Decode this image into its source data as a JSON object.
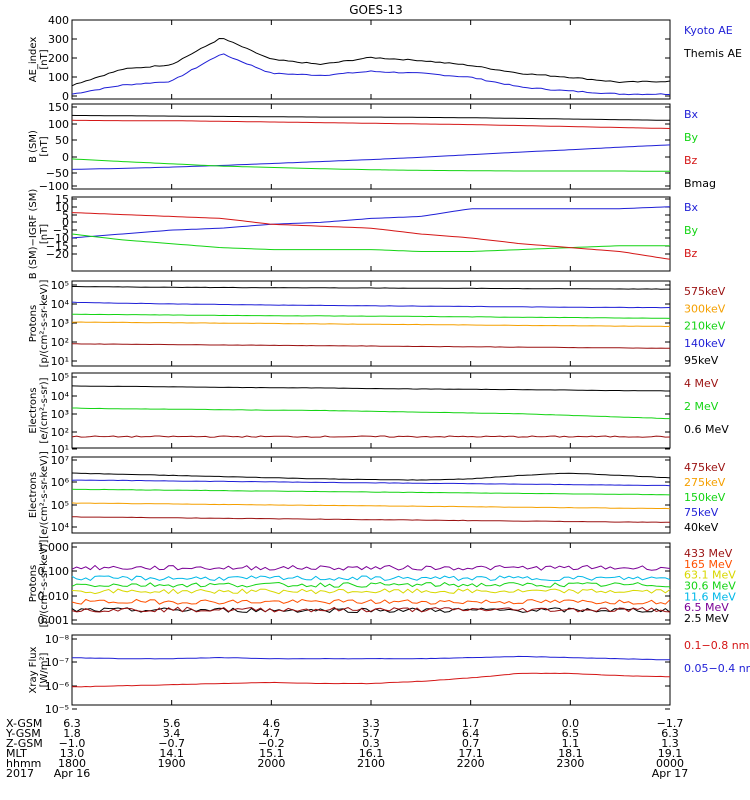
{
  "figure": {
    "title": "GOES-13"
  },
  "colors": {
    "black": "#000000",
    "blue": "#1f1fd6",
    "red": "#d41616",
    "green": "#14d414",
    "orange": "#f5a000",
    "darkred": "#9a1010",
    "cyan": "#00b8e8",
    "yellow": "#d8d800",
    "brightorange": "#ff5000",
    "purple": "#7a0096"
  },
  "panels": [
    {
      "ylabel": [
        "AE_index",
        "[nT]"
      ],
      "ticks": [
        "400",
        "300",
        "200",
        "100",
        "0"
      ],
      "legend": [
        {
          "text": "Kyoto AE",
          "color": "blue"
        },
        {
          "text": "Themis AE",
          "color": "black"
        }
      ]
    },
    {
      "ylabel": [
        "B (SM)",
        "[nT]"
      ],
      "ticks": [
        "150",
        "100",
        "50",
        "0",
        "−50",
        "−100"
      ],
      "legend": [
        {
          "text": "Bx",
          "color": "blue"
        },
        {
          "text": "By",
          "color": "green"
        },
        {
          "text": "Bz",
          "color": "red"
        },
        {
          "text": "Bmag",
          "color": "black"
        }
      ]
    },
    {
      "ylabel": [
        "B (SM)−IGRF (SM)",
        "[nT]"
      ],
      "ticks": [
        "15",
        "10",
        "5",
        "0",
        "−5",
        "−10",
        "−15",
        "−20"
      ],
      "legend": [
        {
          "text": "Bx",
          "color": "blue"
        },
        {
          "text": "By",
          "color": "green"
        },
        {
          "text": "Bz",
          "color": "red"
        }
      ]
    },
    {
      "ylabel": [
        "Protons",
        "[p/(cm²-s-sr-keV)]"
      ],
      "ticks": [
        "10⁵",
        "10⁴",
        "10³",
        "10²",
        "10¹"
      ],
      "legend": [
        {
          "text": "575keV",
          "color": "darkred"
        },
        {
          "text": "300keV",
          "color": "orange"
        },
        {
          "text": "210keV",
          "color": "green"
        },
        {
          "text": "140keV",
          "color": "blue"
        },
        {
          "text": "95keV",
          "color": "black"
        }
      ]
    },
    {
      "ylabel": [
        "Electrons",
        "[e/(cm²-s-sr)]"
      ],
      "ticks": [
        "10⁵",
        "10⁴",
        "10³",
        "10²",
        "10¹"
      ],
      "legend": [
        {
          "text": "4 MeV",
          "color": "darkred"
        },
        {
          "text": "2 MeV",
          "color": "green"
        },
        {
          "text": "0.6 MeV",
          "color": "black"
        }
      ]
    },
    {
      "ylabel": [
        "Electrons",
        "[e/(cm²-s-sr-keV)]"
      ],
      "ticks": [
        "10⁷",
        "10⁶",
        "10⁵",
        "10⁴"
      ],
      "legend": [
        {
          "text": "475keV",
          "color": "darkred"
        },
        {
          "text": "275keV",
          "color": "orange"
        },
        {
          "text": "150keV",
          "color": "green"
        },
        {
          "text": "75keV",
          "color": "blue"
        },
        {
          "text": "40keV",
          "color": "black"
        }
      ]
    },
    {
      "ylabel": [
        "Protons",
        "[p/(cm²-s-sr-keV)]"
      ],
      "ticks": [
        "1.000",
        "0.100",
        "0.010",
        "0.001"
      ],
      "legend": [
        {
          "text": "433 MeV",
          "color": "darkred"
        },
        {
          "text": "165 MeV",
          "color": "brightorange"
        },
        {
          "text": "63.1 MeV",
          "color": "yellow"
        },
        {
          "text": "30.6 MeV",
          "color": "green"
        },
        {
          "text": "11.6 MeV",
          "color": "cyan"
        },
        {
          "text": "6.5 MeV",
          "color": "purple"
        },
        {
          "text": "2.5 MeV",
          "color": "black"
        }
      ]
    },
    {
      "ylabel": [
        "Xray Flux",
        "[W/m²]"
      ],
      "ticks": [
        "10⁻⁸",
        "10⁻⁷",
        "10⁻⁶",
        "10⁻⁵"
      ],
      "legend": [
        {
          "text": "0.1−0.8 nm",
          "color": "red"
        },
        {
          "text": "0.05−0.4 nm",
          "color": "blue"
        }
      ]
    }
  ],
  "ephemeris": {
    "labels": [
      "X-GSM",
      "Y-GSM",
      "Z-GSM",
      "MLT",
      "hhmm",
      "2017"
    ],
    "columns": [
      [
        "6.3",
        "1.8",
        "−1.0",
        "13.0",
        "1800",
        "Apr 16"
      ],
      [
        "5.6",
        "3.4",
        "−0.7",
        "14.1",
        "1900",
        ""
      ],
      [
        "4.6",
        "4.7",
        "−0.2",
        "15.1",
        "2000",
        ""
      ],
      [
        "3.3",
        "5.7",
        "0.3",
        "16.1",
        "2100",
        ""
      ],
      [
        "1.7",
        "6.4",
        "0.7",
        "17.1",
        "2200",
        ""
      ],
      [
        "0.0",
        "6.5",
        "1.1",
        "18.1",
        "2300",
        ""
      ],
      [
        "−1.7",
        "6.3",
        "1.3",
        "19.1",
        "0000",
        "Apr 17"
      ]
    ]
  },
  "chart_data": {
    "type": "line",
    "title": "GOES-13",
    "x_hours": [
      18,
      18.5,
      19,
      19.5,
      20,
      20.5,
      21,
      21.5,
      22,
      22.5,
      23,
      23.5,
      24
    ],
    "panels": [
      {
        "ylim": [
          0,
          400
        ],
        "log": false,
        "series": [
          {
            "name": "Kyoto AE",
            "color": "blue",
            "values": [
              25,
              70,
              90,
              230,
              130,
              120,
              140,
              130,
              110,
              60,
              40,
              25,
              25
            ]
          },
          {
            "name": "Themis AE",
            "color": "black",
            "values": [
              70,
              150,
              175,
              310,
              200,
              175,
              210,
              195,
              170,
              130,
              110,
              85,
              90
            ]
          }
        ]
      },
      {
        "ylim": [
          -110,
          150
        ],
        "log": false,
        "series": [
          {
            "name": "Bx",
            "color": "blue",
            "values": [
              -50,
              -47,
              -43,
              -38,
              -32,
              -26,
              -20,
              -13,
              -5,
              3,
              10,
              18,
              25
            ]
          },
          {
            "name": "By",
            "color": "green",
            "values": [
              -18,
              -26,
              -33,
              -40,
              -44,
              -48,
              -51,
              -53,
              -54,
              -55,
              -55,
              -55,
              -56
            ]
          },
          {
            "name": "Bz",
            "color": "red",
            "values": [
              100,
              99,
              99,
              97,
              95,
              93,
              91,
              89,
              87,
              84,
              81,
              78,
              75
            ]
          },
          {
            "name": "Bmag",
            "color": "black",
            "values": [
              115,
              114,
              113,
              112,
              111,
              110,
              110,
              109,
              108,
              106,
              104,
              102,
              100
            ]
          }
        ]
      },
      {
        "ylim": [
          -22,
          16
        ],
        "log": false,
        "series": [
          {
            "name": "Bx",
            "color": "blue",
            "values": [
              -5,
              -3,
              -1,
              0,
              2,
              3,
              5,
              6,
              10,
              10,
              10,
              10,
              11
            ]
          },
          {
            "name": "By",
            "color": "green",
            "values": [
              -3,
              -6,
              -8,
              -10,
              -11,
              -11,
              -11,
              -12,
              -12,
              -11,
              -10,
              -9,
              -9
            ]
          },
          {
            "name": "Bz",
            "color": "red",
            "values": [
              8,
              7,
              6,
              5,
              2,
              1,
              0,
              -3,
              -5,
              -8,
              -10,
              -12,
              -16
            ]
          }
        ]
      },
      {
        "ylim": [
          0.6,
          5.2
        ],
        "log": true,
        "series": [
          {
            "name": "95keV",
            "color": "black",
            "values": [
              4.9,
              4.88,
              4.86,
              4.85,
              4.84,
              4.83,
              4.82,
              4.81,
              4.8,
              4.79,
              4.78,
              4.77,
              4.76
            ]
          },
          {
            "name": "140keV",
            "color": "blue",
            "values": [
              4.05,
              4.0,
              3.96,
              3.93,
              3.9,
              3.88,
              3.86,
              3.84,
              3.82,
              3.8,
              3.78,
              3.77,
              3.76
            ]
          },
          {
            "name": "210keV",
            "color": "green",
            "values": [
              3.4,
              3.38,
              3.36,
              3.34,
              3.32,
              3.31,
              3.3,
              3.28,
              3.26,
              3.24,
              3.22,
              3.2,
              3.18
            ]
          },
          {
            "name": "300keV",
            "color": "orange",
            "values": [
              2.98,
              2.96,
              2.94,
              2.92,
              2.9,
              2.88,
              2.86,
              2.84,
              2.82,
              2.8,
              2.78,
              2.76,
              2.74
            ]
          },
          {
            "name": "575keV",
            "color": "darkred",
            "values": [
              1.8,
              1.78,
              1.76,
              1.74,
              1.72,
              1.7,
              1.68,
              1.66,
              1.64,
              1.62,
              1.6,
              1.58,
              1.56
            ]
          }
        ]
      },
      {
        "ylim": [
          0.6,
          5.2
        ],
        "log": true,
        "series": [
          {
            "name": "0.6 MeV",
            "color": "black",
            "values": [
              4.4,
              4.38,
              4.35,
              4.32,
              4.3,
              4.28,
              4.25,
              4.22,
              4.2,
              4.18,
              4.15,
              4.12,
              4.1
            ]
          },
          {
            "name": "2 MeV",
            "color": "green",
            "values": [
              3.05,
              3.0,
              2.98,
              2.95,
              2.92,
              2.9,
              2.85,
              2.8,
              2.75,
              2.7,
              2.6,
              2.5,
              2.4
            ]
          },
          {
            "name": "4 MeV",
            "color": "darkred",
            "values": [
              1.3,
              1.3,
              1.3,
              1.3,
              1.3,
              1.3,
              1.3,
              1.3,
              1.3,
              1.3,
              1.3,
              1.3,
              1.3
            ]
          }
        ]
      },
      {
        "ylim": [
          3.8,
          7.1
        ],
        "log": true,
        "series": [
          {
            "name": "40keV",
            "color": "black",
            "values": [
              6.4,
              6.35,
              6.3,
              6.25,
              6.2,
              6.15,
              6.12,
              6.1,
              6.15,
              6.3,
              6.4,
              6.3,
              6.2
            ]
          },
          {
            "name": "75keV",
            "color": "blue",
            "values": [
              6.1,
              6.08,
              6.06,
              6.04,
              6.02,
              6.0,
              5.98,
              5.96,
              5.94,
              5.92,
              5.9,
              5.88,
              5.86
            ]
          },
          {
            "name": "150keV",
            "color": "green",
            "values": [
              5.7,
              5.68,
              5.66,
              5.64,
              5.62,
              5.6,
              5.58,
              5.56,
              5.54,
              5.52,
              5.5,
              5.48,
              5.46
            ]
          },
          {
            "name": "275keV",
            "color": "orange",
            "values": [
              5.1,
              5.08,
              5.06,
              5.04,
              5.02,
              5.0,
              4.98,
              4.96,
              4.94,
              4.92,
              4.9,
              4.88,
              4.86
            ]
          },
          {
            "name": "475keV",
            "color": "darkred",
            "values": [
              4.5,
              4.48,
              4.46,
              4.44,
              4.42,
              4.4,
              4.38,
              4.36,
              4.34,
              4.32,
              4.3,
              4.28,
              4.26
            ]
          }
        ]
      },
      {
        "ylim": [
          -3.05,
          0.05
        ],
        "log": true,
        "series": [
          {
            "name": "2.5 MeV",
            "color": "black",
            "values": [
              -2.52,
              -2.52,
              -2.52,
              -2.52,
              -2.52,
              -2.52,
              -2.52,
              -2.52,
              -2.52,
              -2.52,
              -2.52,
              -2.52,
              -2.52
            ]
          },
          {
            "name": "6.5 MeV",
            "color": "purple",
            "values": [
              -0.9,
              -0.9,
              -0.9,
              -0.9,
              -0.9,
              -0.9,
              -0.9,
              -0.9,
              -0.9,
              -0.9,
              -0.9,
              -0.9,
              -0.9
            ]
          },
          {
            "name": "11.6 MeV",
            "color": "cyan",
            "values": [
              -1.3,
              -1.3,
              -1.3,
              -1.3,
              -1.3,
              -1.3,
              -1.3,
              -1.3,
              -1.3,
              -1.3,
              -1.3,
              -1.3,
              -1.3
            ]
          },
          {
            "name": "30.6 MeV",
            "color": "green",
            "values": [
              -1.55,
              -1.55,
              -1.55,
              -1.55,
              -1.55,
              -1.55,
              -1.55,
              -1.55,
              -1.55,
              -1.55,
              -1.55,
              -1.55,
              -1.55
            ]
          },
          {
            "name": "63.1 MeV",
            "color": "yellow",
            "values": [
              -1.8,
              -1.8,
              -1.8,
              -1.8,
              -1.8,
              -1.8,
              -1.8,
              -1.8,
              -1.8,
              -1.8,
              -1.8,
              -1.8,
              -1.8
            ]
          },
          {
            "name": "165 MeV",
            "color": "brightorange",
            "values": [
              -2.2,
              -2.2,
              -2.2,
              -2.2,
              -2.2,
              -2.2,
              -2.2,
              -2.2,
              -2.2,
              -2.2,
              -2.2,
              -2.2,
              -2.2
            ]
          },
          {
            "name": "433 MeV",
            "color": "darkred",
            "values": [
              -2.5,
              -2.5,
              -2.5,
              -2.5,
              -2.5,
              -2.5,
              -2.5,
              -2.5,
              -2.5,
              -2.5,
              -2.5,
              -2.5,
              -2.5
            ]
          }
        ]
      },
      {
        "ylim": [
          -8.05,
          -4.95
        ],
        "log": true,
        "series": [
          {
            "name": "0.1−0.8 nm",
            "color": "red",
            "values": [
              -7.25,
              -7.2,
              -7.15,
              -7.1,
              -7.05,
              -7.1,
              -7.1,
              -7.0,
              -6.85,
              -6.65,
              -6.65,
              -6.75,
              -6.8
            ]
          },
          {
            "name": "0.05−0.4 nm",
            "color": "blue",
            "values": [
              -5.95,
              -6.0,
              -6.0,
              -5.95,
              -6.0,
              -6.0,
              -6.0,
              -6.0,
              -5.95,
              -5.9,
              -5.95,
              -6.0,
              -6.05
            ]
          }
        ]
      }
    ]
  }
}
